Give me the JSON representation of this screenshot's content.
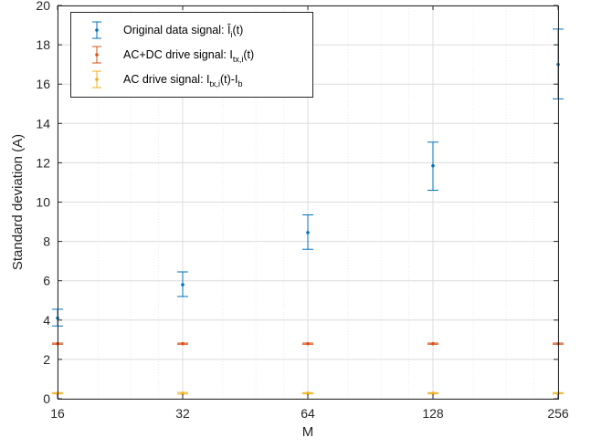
{
  "chart_data": {
    "type": "scatter",
    "xscale": "log2",
    "x": [
      16,
      32,
      64,
      128,
      256
    ],
    "x_ticks": [
      "16",
      "32",
      "64",
      "128",
      "256"
    ],
    "xlim": [
      16,
      256
    ],
    "y_ticks": [
      "0",
      "2",
      "4",
      "6",
      "8",
      "10",
      "12",
      "14",
      "16",
      "18",
      "20"
    ],
    "ylim": [
      0,
      20
    ],
    "xlabel": "M",
    "ylabel": "Standard deviation (A)",
    "grid": true,
    "minor_grid": true,
    "legend_position": "top-left",
    "series": [
      {
        "legend": {
          "text": "Original data signal: ",
          "symbol": "Î",
          "sub": "i",
          "tail": "(t)"
        },
        "color": "#0072BD",
        "values": [
          4.1,
          5.8,
          8.45,
          11.85,
          17.0
        ],
        "err_low": [
          3.7,
          5.2,
          7.6,
          10.6,
          15.25
        ],
        "err_high": [
          4.55,
          6.45,
          9.35,
          13.05,
          18.8
        ]
      },
      {
        "legend": {
          "text": "AC+DC drive signal: I",
          "sub": "tx,i",
          "tail": "(t)"
        },
        "color": "#D95319",
        "values": [
          2.8,
          2.8,
          2.8,
          2.8,
          2.8
        ],
        "err_low": [
          2.77,
          2.77,
          2.77,
          2.77,
          2.77
        ],
        "err_high": [
          2.83,
          2.83,
          2.83,
          2.83,
          2.83
        ]
      },
      {
        "legend": {
          "text": "AC drive signal: I",
          "sub": "tx,i",
          "tail": "(t)-I",
          "sub2": "b"
        },
        "color": "#EDB120",
        "values": [
          0.28,
          0.28,
          0.28,
          0.28,
          0.28
        ],
        "err_low": [
          0.25,
          0.24,
          0.25,
          0.25,
          0.25
        ],
        "err_high": [
          0.31,
          0.32,
          0.31,
          0.31,
          0.31
        ]
      }
    ]
  }
}
